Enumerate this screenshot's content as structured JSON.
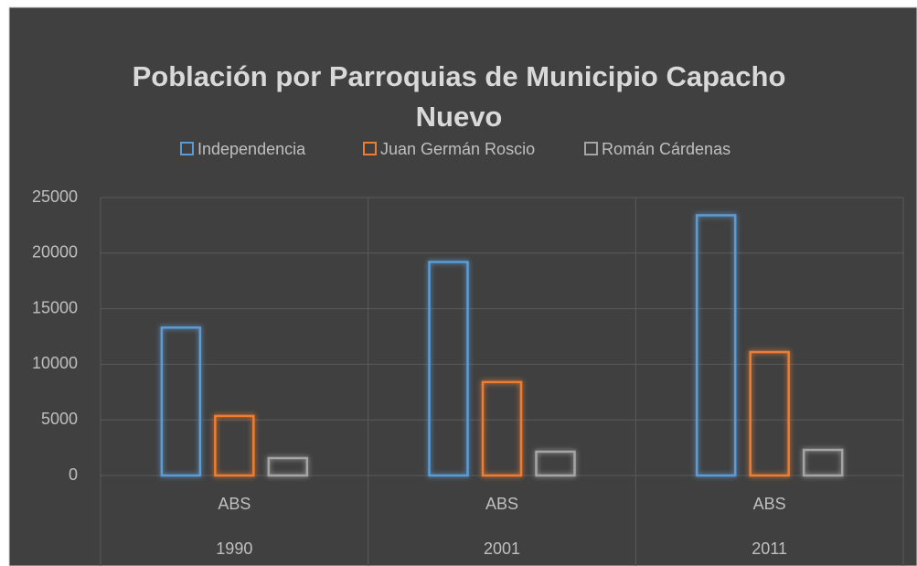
{
  "chart_data": {
    "type": "bar",
    "title": [
      "Población por Parroquias de Municipio Capacho",
      "Nuevo"
    ],
    "categories": [
      "ABS",
      "ABS",
      "ABS"
    ],
    "groups": [
      "1990",
      "2001",
      "2011"
    ],
    "series": [
      {
        "name": "Independencia",
        "color": "#5b9bd5",
        "values": [
          13300,
          19200,
          23400
        ]
      },
      {
        "name": "Juan Germán Roscio",
        "color": "#ed7d31",
        "values": [
          5350,
          8400,
          11100
        ]
      },
      {
        "name": "Román Cárdenas",
        "color": "#a5a5a5",
        "values": [
          1560,
          2140,
          2300
        ]
      }
    ],
    "ylim": [
      0,
      25000
    ],
    "yticks": [
      0,
      5000,
      10000,
      15000,
      20000,
      25000
    ],
    "grid": true,
    "legend": "top"
  }
}
